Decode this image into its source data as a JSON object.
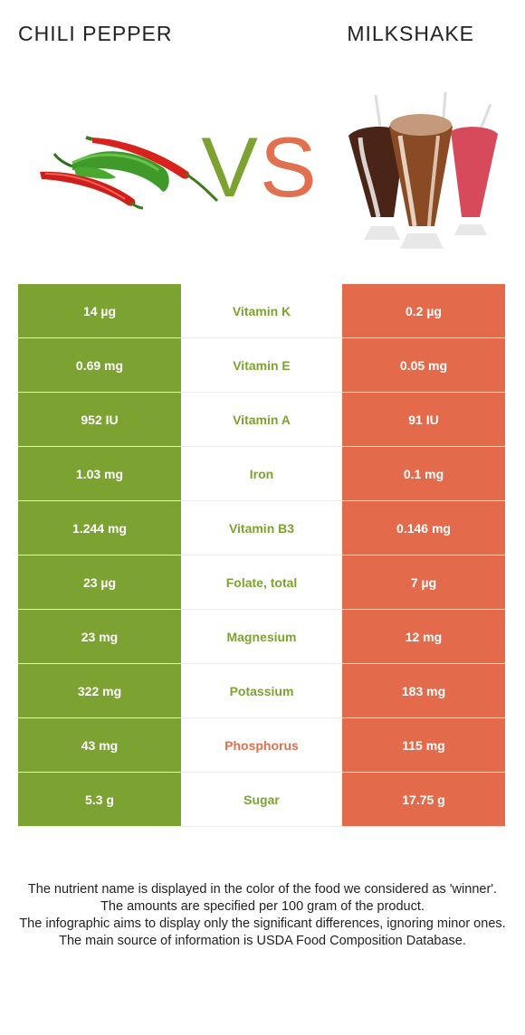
{
  "left_food": "CHILI PEPPER",
  "right_food": "MILKSHAKE",
  "vs": {
    "v": "V",
    "s": "S"
  },
  "colors": {
    "left": "#7ca232",
    "right": "#e36b4c"
  },
  "rows": [
    {
      "nutrient": "Vitamin K",
      "left": "14 µg",
      "right": "0.2 µg",
      "winner": "left"
    },
    {
      "nutrient": "Vitamin E",
      "left": "0.69 mg",
      "right": "0.05 mg",
      "winner": "left"
    },
    {
      "nutrient": "Vitamin A",
      "left": "952 IU",
      "right": "91 IU",
      "winner": "left"
    },
    {
      "nutrient": "Iron",
      "left": "1.03 mg",
      "right": "0.1 mg",
      "winner": "left"
    },
    {
      "nutrient": "Vitamin B3",
      "left": "1.244 mg",
      "right": "0.146 mg",
      "winner": "left"
    },
    {
      "nutrient": "Folate, total",
      "left": "23 µg",
      "right": "7 µg",
      "winner": "left"
    },
    {
      "nutrient": "Magnesium",
      "left": "23 mg",
      "right": "12 mg",
      "winner": "left"
    },
    {
      "nutrient": "Potassium",
      "left": "322 mg",
      "right": "183 mg",
      "winner": "left"
    },
    {
      "nutrient": "Phosphorus",
      "left": "43 mg",
      "right": "115 mg",
      "winner": "right"
    },
    {
      "nutrient": "Sugar",
      "left": "5.3 g",
      "right": "17.75 g",
      "winner": "left"
    }
  ],
  "footer": [
    "The nutrient name is displayed in the color of the food we considered as 'winner'.",
    "The amounts are specified per 100 gram of the product.",
    "The infographic aims to display only the significant differences, ignoring minor ones.",
    "The main source of information is USDA Food Composition Database."
  ]
}
